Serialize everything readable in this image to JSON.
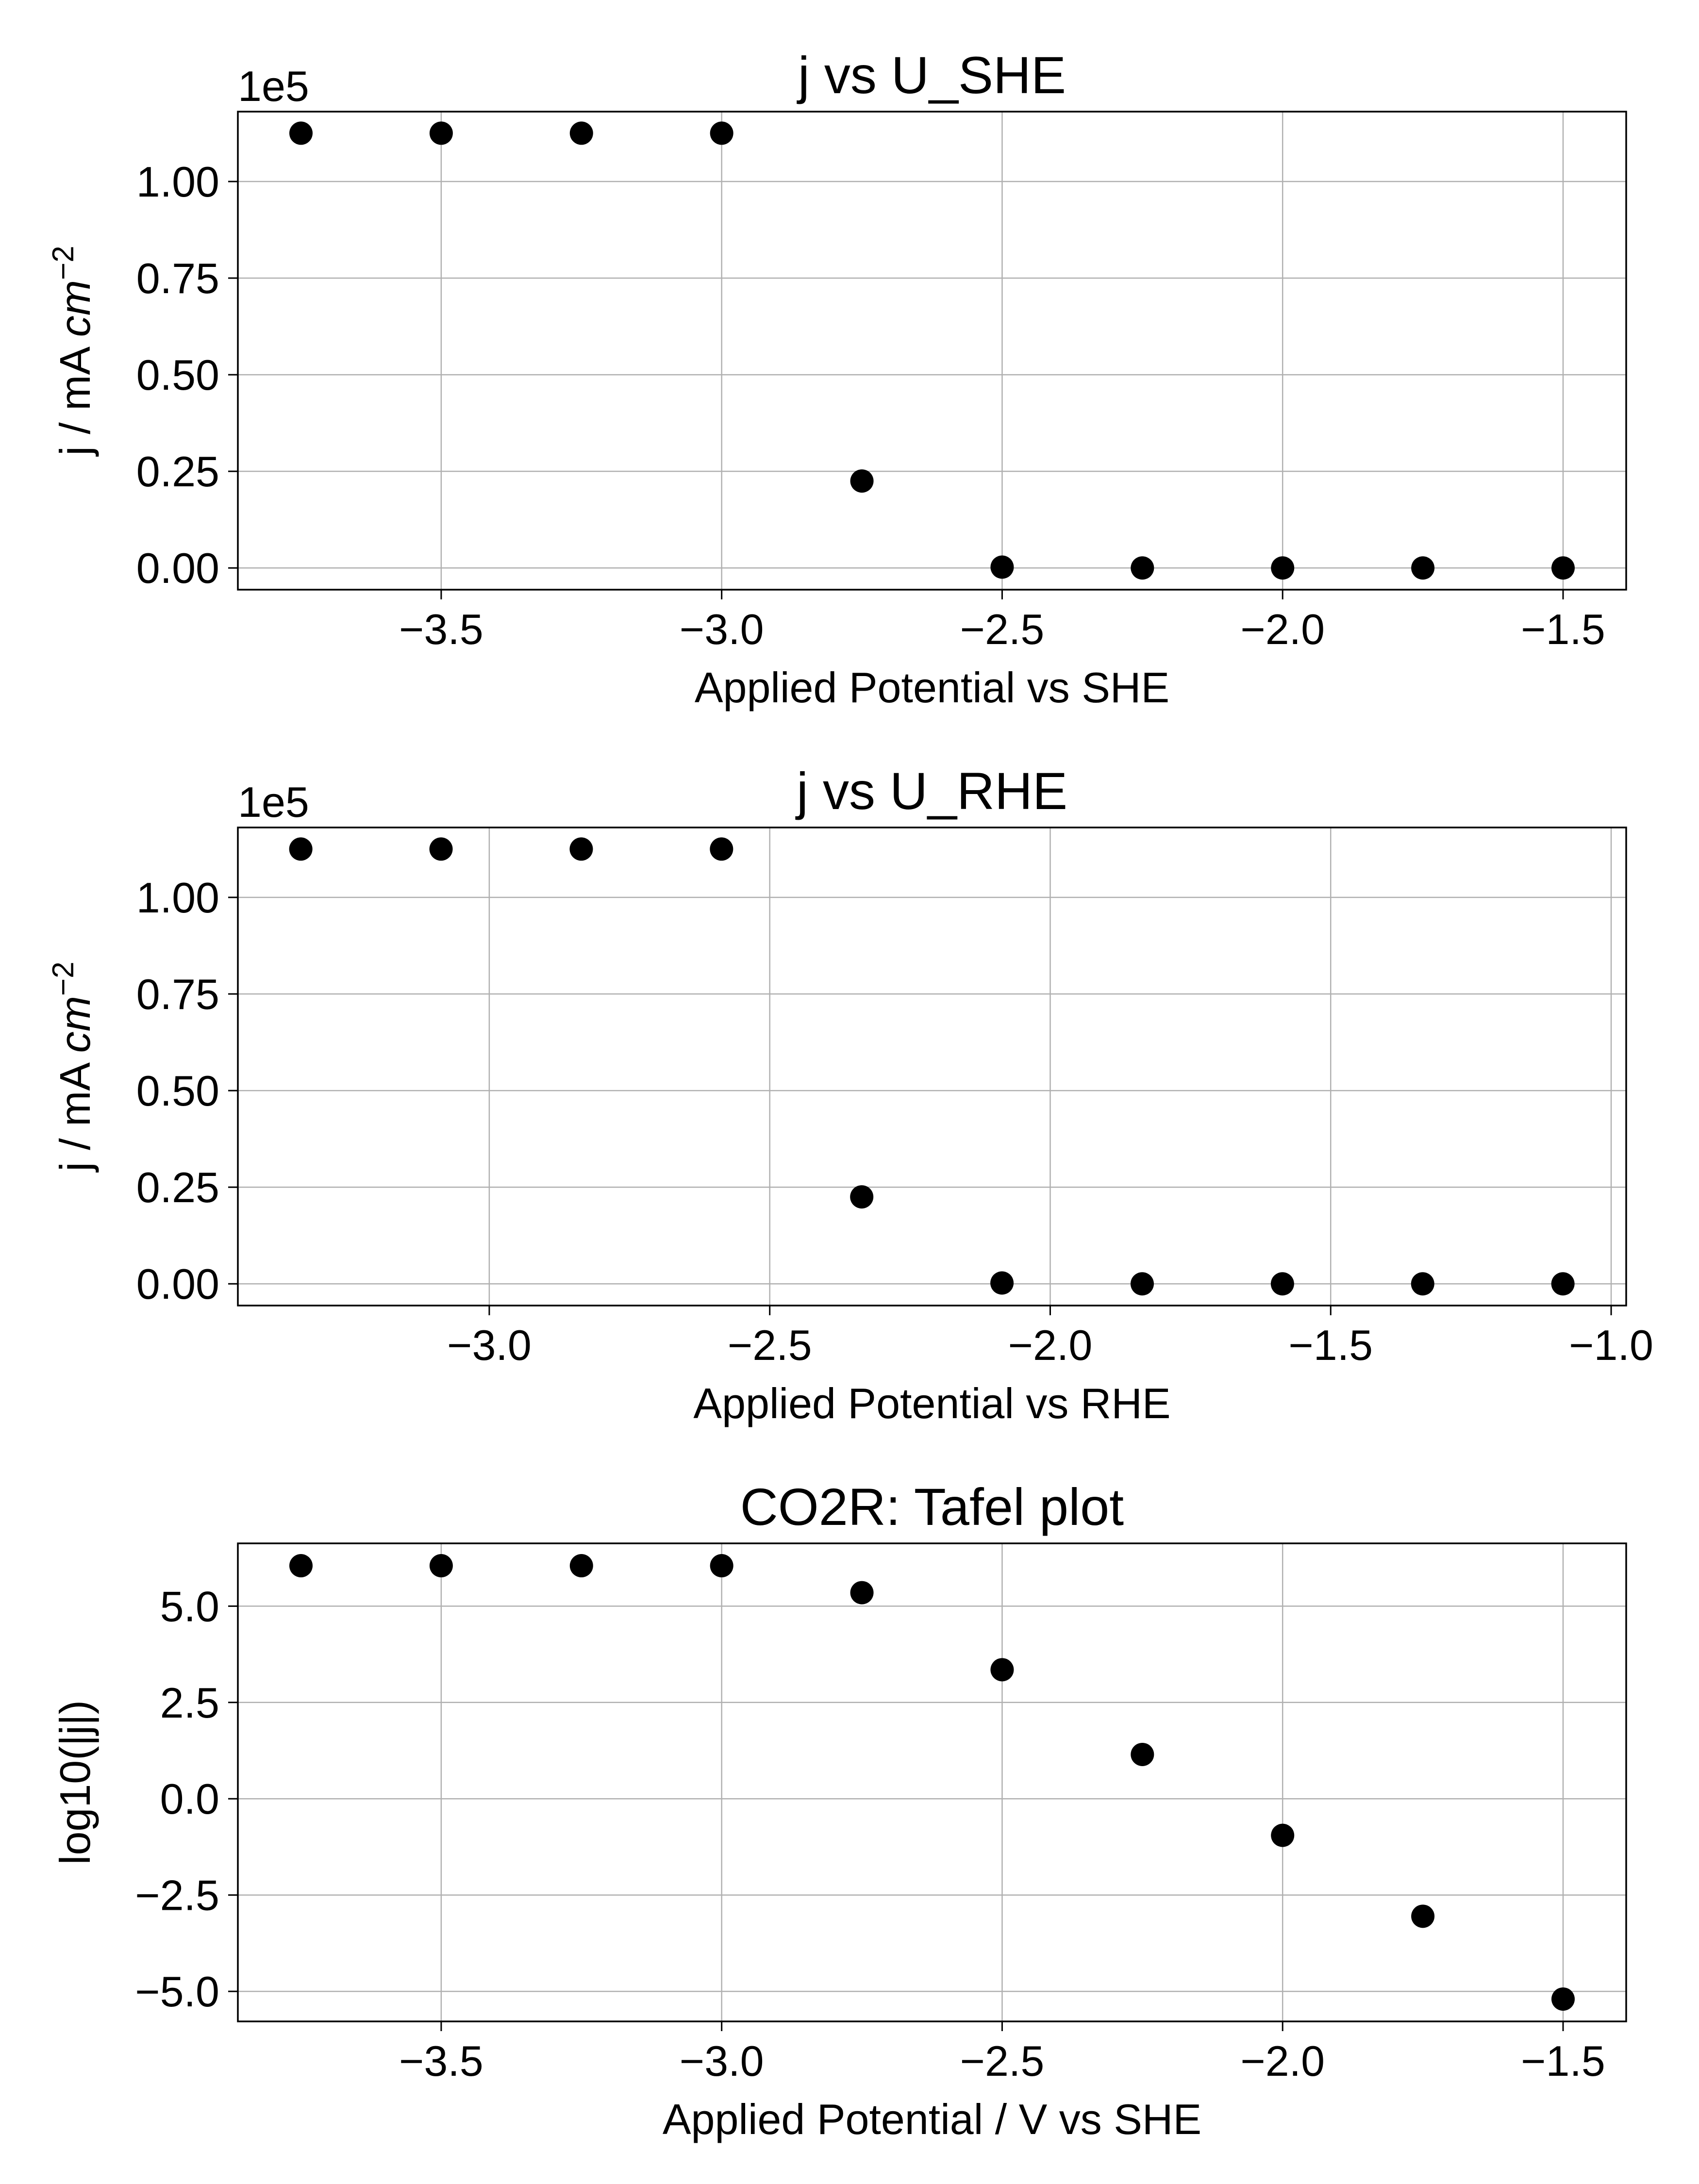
{
  "chart_data": [
    {
      "type": "scatter",
      "title": "j vs U_SHE",
      "xlabel": "Applied Potential vs SHE",
      "ylabel": "j / mA cm^-2",
      "ylabel_base": "j / mA ",
      "ylabel_italic": "cm",
      "ylabel_sup": "−2",
      "offset_text": "1e5",
      "y_scale_factor": 100000,
      "xlim": [
        -3.8625,
        -1.3875
      ],
      "ylim": [
        -0.0562,
        1.1808
      ],
      "xticks": [
        -3.5,
        -3.0,
        -2.5,
        -2.0,
        -1.5
      ],
      "xtick_labels": [
        "−3.5",
        "−3.0",
        "−2.5",
        "−2.0",
        "−1.5"
      ],
      "yticks": [
        0.0,
        0.25,
        0.5,
        0.75,
        1.0
      ],
      "ytick_labels": [
        "0.00",
        "0.25",
        "0.50",
        "0.75",
        "1.00"
      ],
      "grid": true,
      "marker_color": "#000000",
      "x": [
        -3.75,
        -3.5,
        -3.25,
        -3.0,
        -2.75,
        -2.5,
        -2.25,
        -2.0,
        -1.75,
        -1.5
      ],
      "y": [
        1.125,
        1.125,
        1.125,
        1.125,
        0.225,
        0.0022,
        1.4e-05,
        1e-07,
        9e-10,
        0.0
      ]
    },
    {
      "type": "scatter",
      "title": "j vs U_RHE",
      "xlabel": "Applied Potential vs RHE",
      "ylabel": "j / mA cm^-2",
      "ylabel_base": "j / mA ",
      "ylabel_italic": "cm",
      "ylabel_sup": "−2",
      "offset_text": "1e5",
      "y_scale_factor": 100000,
      "xlim": [
        -3.4482,
        -0.9732
      ],
      "ylim": [
        -0.0562,
        1.1808
      ],
      "xticks": [
        -3.0,
        -2.5,
        -2.0,
        -1.5,
        -1.0
      ],
      "xtick_labels": [
        "−3.0",
        "−2.5",
        "−2.0",
        "−1.5",
        "−1.0"
      ],
      "yticks": [
        0.0,
        0.25,
        0.5,
        0.75,
        1.0
      ],
      "ytick_labels": [
        "0.00",
        "0.25",
        "0.50",
        "0.75",
        "1.00"
      ],
      "grid": true,
      "marker_color": "#000000",
      "x": [
        -3.336,
        -3.086,
        -2.836,
        -2.586,
        -2.336,
        -2.086,
        -1.836,
        -1.586,
        -1.336,
        -1.086
      ],
      "y": [
        1.125,
        1.125,
        1.125,
        1.125,
        0.225,
        0.0022,
        1.4e-05,
        1e-07,
        9e-10,
        0.0
      ]
    },
    {
      "type": "scatter",
      "title": "CO2R: Tafel plot",
      "xlabel": "Applied Potential / V vs SHE",
      "ylabel": "log10(|j|)",
      "xlim": [
        -3.8625,
        -1.3875
      ],
      "ylim": [
        -5.78,
        6.63
      ],
      "xticks": [
        -3.5,
        -3.0,
        -2.5,
        -2.0,
        -1.5
      ],
      "xtick_labels": [
        "−3.5",
        "−3.0",
        "−2.5",
        "−2.0",
        "−1.5"
      ],
      "yticks": [
        -5.0,
        -2.5,
        0.0,
        2.5,
        5.0
      ],
      "ytick_labels": [
        "−5.0",
        "−2.5",
        "0.0",
        "2.5",
        "5.0"
      ],
      "grid": true,
      "marker_color": "#000000",
      "x": [
        -3.75,
        -3.5,
        -3.25,
        -3.0,
        -2.75,
        -2.5,
        -2.25,
        -2.0,
        -1.75,
        -1.5
      ],
      "y": [
        6.05,
        6.05,
        6.05,
        6.05,
        5.35,
        3.35,
        1.15,
        -0.95,
        -3.05,
        -5.2
      ]
    }
  ]
}
